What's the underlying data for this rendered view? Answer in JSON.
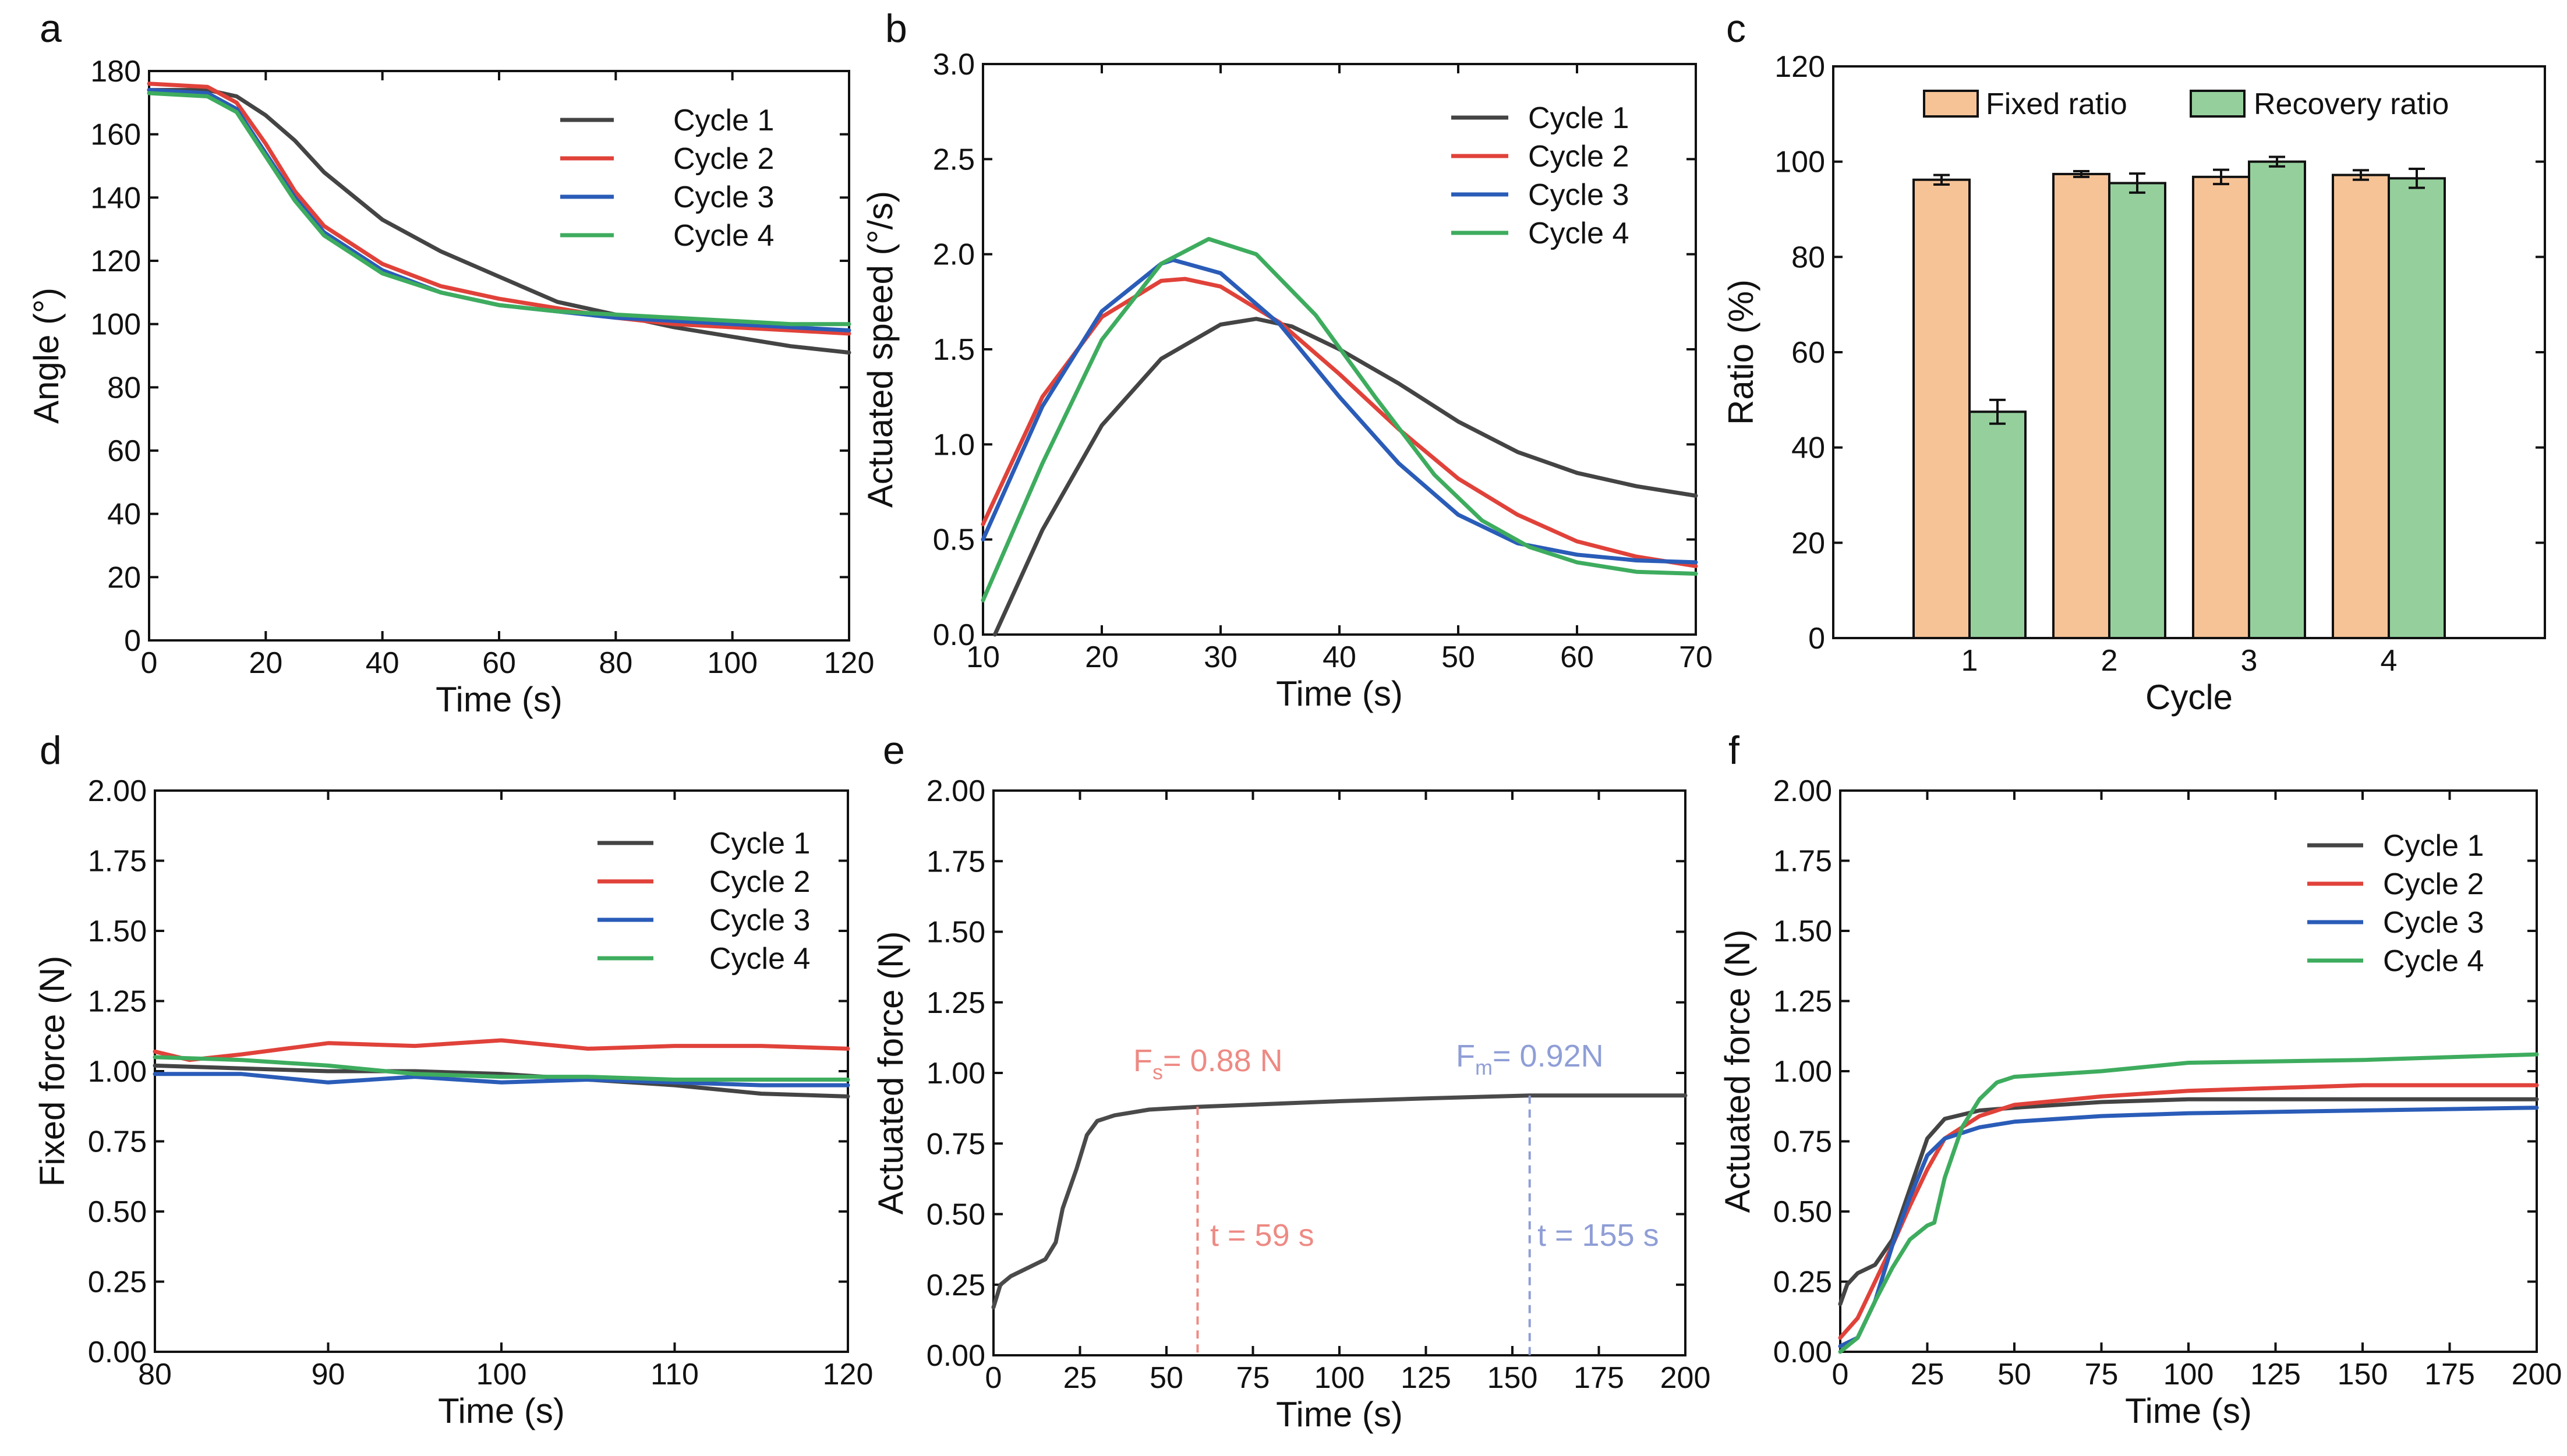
{
  "colors": {
    "cycle1": "#444444",
    "cycle2": "#e0423a",
    "cycle3": "#2a5cb8",
    "cycle4": "#3eac5e",
    "fixed_bar": "#f6c396",
    "recovery_bar": "#95d09c",
    "annot_red": "#ee8a84",
    "annot_blue": "#8f9ed6"
  },
  "chart_data": [
    {
      "panel": "a",
      "type": "line",
      "xlabel": "Time (s)",
      "ylabel": "Angle (°)",
      "xlim": [
        0,
        120
      ],
      "ylim": [
        0,
        180
      ],
      "xticks": [
        "0",
        "20",
        "40",
        "60",
        "80",
        "100",
        "120"
      ],
      "yticks": [
        "0",
        "20",
        "40",
        "60",
        "80",
        "100",
        "120",
        "140",
        "160",
        "180"
      ],
      "legend": "top-right",
      "series": [
        {
          "name": "Cycle 1",
          "x": [
            0,
            10,
            15,
            20,
            25,
            30,
            40,
            50,
            60,
            70,
            80,
            90,
            100,
            110,
            120
          ],
          "y": [
            174,
            174,
            172,
            166,
            158,
            148,
            133,
            123,
            115,
            107,
            103,
            99,
            96,
            93,
            91
          ]
        },
        {
          "name": "Cycle 2",
          "x": [
            0,
            10,
            15,
            20,
            25,
            30,
            40,
            50,
            60,
            70,
            80,
            90,
            100,
            110,
            120
          ],
          "y": [
            176,
            175,
            170,
            157,
            142,
            131,
            119,
            112,
            108,
            105,
            102,
            100,
            99,
            98,
            97
          ]
        },
        {
          "name": "Cycle 3",
          "x": [
            0,
            10,
            15,
            20,
            25,
            30,
            40,
            50,
            60,
            70,
            80,
            90,
            100,
            110,
            120
          ],
          "y": [
            174,
            173,
            168,
            154,
            140,
            129,
            117,
            110,
            106,
            104,
            102,
            101,
            100,
            99,
            98
          ]
        },
        {
          "name": "Cycle 4",
          "x": [
            0,
            10,
            15,
            20,
            25,
            30,
            40,
            50,
            60,
            70,
            80,
            90,
            100,
            110,
            120
          ],
          "y": [
            173,
            172,
            167,
            153,
            139,
            128,
            116,
            110,
            106,
            104,
            103,
            102,
            101,
            100,
            100
          ]
        }
      ]
    },
    {
      "panel": "b",
      "type": "line",
      "xlabel": "Time (s)",
      "ylabel": "Actuated speed (°/s)",
      "xlim": [
        10,
        70
      ],
      "ylim": [
        0,
        3.0
      ],
      "xticks": [
        "10",
        "20",
        "30",
        "40",
        "50",
        "60",
        "70"
      ],
      "yticks": [
        "0.0",
        "0.5",
        "1.0",
        "1.5",
        "2.0",
        "2.5",
        "3.0"
      ],
      "legend": "top-right",
      "series": [
        {
          "name": "Cycle 1",
          "x": [
            11,
            15,
            20,
            25,
            30,
            33,
            36,
            40,
            45,
            50,
            55,
            60,
            65,
            70
          ],
          "y": [
            0.0,
            0.55,
            1.1,
            1.45,
            1.63,
            1.66,
            1.62,
            1.5,
            1.32,
            1.12,
            0.96,
            0.85,
            0.78,
            0.73
          ]
        },
        {
          "name": "Cycle 2",
          "x": [
            10,
            15,
            20,
            25,
            27,
            30,
            35,
            40,
            45,
            50,
            55,
            60,
            65,
            70
          ],
          "y": [
            0.58,
            1.25,
            1.67,
            1.86,
            1.87,
            1.83,
            1.64,
            1.37,
            1.08,
            0.82,
            0.63,
            0.49,
            0.41,
            0.36
          ]
        },
        {
          "name": "Cycle 3",
          "x": [
            10,
            15,
            20,
            25,
            26,
            30,
            35,
            40,
            45,
            50,
            55,
            60,
            65,
            70
          ],
          "y": [
            0.5,
            1.2,
            1.7,
            1.95,
            1.97,
            1.9,
            1.63,
            1.25,
            0.9,
            0.63,
            0.48,
            0.42,
            0.39,
            0.38
          ]
        },
        {
          "name": "Cycle 4",
          "x": [
            10,
            15,
            20,
            25,
            29,
            33,
            38,
            43,
            48,
            52,
            56,
            60,
            65,
            70
          ],
          "y": [
            0.18,
            0.9,
            1.55,
            1.95,
            2.08,
            2.0,
            1.68,
            1.25,
            0.84,
            0.6,
            0.46,
            0.38,
            0.33,
            0.32
          ]
        }
      ]
    },
    {
      "panel": "c",
      "type": "bar",
      "xlabel": "Cycle",
      "ylabel": "Ratio (%)",
      "ylim": [
        0,
        120
      ],
      "categories": [
        "1",
        "2",
        "3",
        "4"
      ],
      "yticks": [
        "0",
        "20",
        "40",
        "60",
        "80",
        "100",
        "120"
      ],
      "legend": "top",
      "series": [
        {
          "name": "Fixed ratio",
          "values": [
            96.2,
            97.4,
            96.8,
            97.2
          ],
          "errors": [
            1.0,
            0.6,
            1.5,
            1.0
          ]
        },
        {
          "name": "Recovery ratio",
          "values": [
            47.5,
            95.5,
            100.0,
            96.5
          ],
          "errors": [
            2.5,
            2.0,
            1.0,
            2.0
          ]
        }
      ]
    },
    {
      "panel": "d",
      "type": "line",
      "xlabel": "Time (s)",
      "ylabel": "Fixed force (N)",
      "xlim": [
        80,
        120
      ],
      "ylim": [
        0,
        2.0
      ],
      "xticks": [
        "80",
        "90",
        "100",
        "110",
        "120"
      ],
      "yticks": [
        "0.00",
        "0.25",
        "0.50",
        "0.75",
        "1.00",
        "1.25",
        "1.50",
        "1.75",
        "2.00"
      ],
      "legend": "top-right",
      "series": [
        {
          "name": "Cycle 1",
          "x": [
            80,
            85,
            90,
            95,
            100,
            105,
            110,
            115,
            120
          ],
          "y": [
            1.02,
            1.01,
            1.0,
            1.0,
            0.99,
            0.97,
            0.95,
            0.92,
            0.91
          ]
        },
        {
          "name": "Cycle 2",
          "x": [
            80,
            82,
            85,
            90,
            95,
            100,
            105,
            110,
            115,
            120
          ],
          "y": [
            1.07,
            1.04,
            1.06,
            1.1,
            1.09,
            1.11,
            1.08,
            1.09,
            1.09,
            1.08
          ]
        },
        {
          "name": "Cycle 3",
          "x": [
            80,
            85,
            90,
            95,
            100,
            105,
            110,
            115,
            120
          ],
          "y": [
            0.99,
            0.99,
            0.96,
            0.98,
            0.96,
            0.97,
            0.96,
            0.95,
            0.95
          ]
        },
        {
          "name": "Cycle 4",
          "x": [
            80,
            85,
            90,
            95,
            100,
            105,
            110,
            115,
            120
          ],
          "y": [
            1.05,
            1.04,
            1.02,
            0.99,
            0.98,
            0.98,
            0.97,
            0.97,
            0.97
          ]
        }
      ]
    },
    {
      "panel": "e",
      "type": "line",
      "xlabel": "Time (s)",
      "ylabel": "Actuated force (N)",
      "xlim": [
        0,
        200
      ],
      "ylim": [
        0,
        2.0
      ],
      "xticks": [
        "0",
        "25",
        "50",
        "75",
        "100",
        "125",
        "150",
        "175",
        "200"
      ],
      "yticks": [
        "0.00",
        "0.25",
        "0.50",
        "0.75",
        "1.00",
        "1.25",
        "1.50",
        "1.75",
        "2.00"
      ],
      "series": [
        {
          "name": "Actuated force",
          "x": [
            0,
            2,
            5,
            10,
            15,
            18,
            20,
            24,
            27,
            30,
            35,
            45,
            59,
            80,
            100,
            125,
            155,
            180,
            200
          ],
          "y": [
            0.17,
            0.25,
            0.28,
            0.31,
            0.34,
            0.4,
            0.52,
            0.66,
            0.78,
            0.83,
            0.85,
            0.87,
            0.88,
            0.89,
            0.9,
            0.91,
            0.92,
            0.92,
            0.92
          ]
        }
      ],
      "annotations": [
        {
          "label": "Fs = 0.88 N",
          "main": "F",
          "sub": "s",
          "rest": "= 0.88 N",
          "x": 59,
          "color": "annot_red"
        },
        {
          "label": "t = 59 s",
          "x": 59,
          "color": "annot_red"
        },
        {
          "label": "Fm = 0.92N",
          "main": "F",
          "sub": "m",
          "rest": "= 0.92N",
          "x": 155,
          "color": "annot_blue"
        },
        {
          "label": "t = 155 s",
          "x": 155,
          "color": "annot_blue"
        }
      ]
    },
    {
      "panel": "f",
      "type": "line",
      "xlabel": "Time (s)",
      "ylabel": "Actuated force (N)",
      "xlim": [
        0,
        200
      ],
      "ylim": [
        0,
        2.0
      ],
      "xticks": [
        "0",
        "25",
        "50",
        "75",
        "100",
        "125",
        "150",
        "175",
        "200"
      ],
      "yticks": [
        "0.00",
        "0.25",
        "0.50",
        "0.75",
        "1.00",
        "1.25",
        "1.50",
        "1.75",
        "2.00"
      ],
      "legend": "top-right",
      "series": [
        {
          "name": "Cycle 1",
          "x": [
            0,
            2,
            5,
            10,
            15,
            20,
            25,
            30,
            40,
            50,
            75,
            100,
            150,
            200
          ],
          "y": [
            0.17,
            0.24,
            0.28,
            0.31,
            0.4,
            0.58,
            0.76,
            0.83,
            0.86,
            0.87,
            0.89,
            0.9,
            0.9,
            0.9
          ]
        },
        {
          "name": "Cycle 2",
          "x": [
            0,
            5,
            10,
            15,
            20,
            25,
            30,
            40,
            50,
            75,
            100,
            150,
            200
          ],
          "y": [
            0.05,
            0.12,
            0.25,
            0.38,
            0.52,
            0.65,
            0.76,
            0.84,
            0.88,
            0.91,
            0.93,
            0.95,
            0.95
          ]
        },
        {
          "name": "Cycle 3",
          "x": [
            0,
            5,
            10,
            15,
            20,
            25,
            30,
            40,
            50,
            75,
            100,
            150,
            200
          ],
          "y": [
            0.02,
            0.05,
            0.18,
            0.38,
            0.55,
            0.7,
            0.76,
            0.8,
            0.82,
            0.84,
            0.85,
            0.86,
            0.87
          ]
        },
        {
          "name": "Cycle 4",
          "x": [
            0,
            5,
            10,
            15,
            20,
            25,
            27,
            30,
            35,
            40,
            45,
            50,
            75,
            100,
            150,
            200
          ],
          "y": [
            0.0,
            0.05,
            0.18,
            0.3,
            0.4,
            0.45,
            0.46,
            0.62,
            0.8,
            0.9,
            0.96,
            0.98,
            1.0,
            1.03,
            1.04,
            1.06
          ]
        }
      ]
    }
  ]
}
